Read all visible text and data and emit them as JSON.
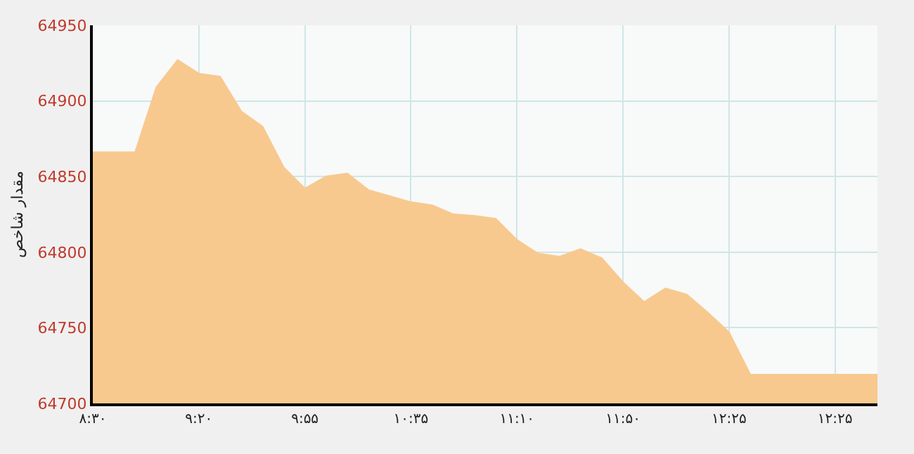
{
  "chart_data": {
    "type": "area",
    "ylabel": "مقدار شاخص",
    "categories": [
      "۸:۳۰",
      null,
      null,
      null,
      null,
      "۹:۲۰",
      null,
      null,
      null,
      null,
      "۹:۵۵",
      null,
      null,
      null,
      null,
      "۱۰:۳۵",
      null,
      null,
      null,
      null,
      "۱۱:۱۰",
      null,
      null,
      null,
      null,
      "۱۱:۵۰",
      null,
      null,
      null,
      null,
      "۱۲:۲۵",
      null,
      null,
      null,
      null,
      "۱۲:۲۵",
      null,
      null
    ],
    "series": [
      {
        "color": "#f8c98e",
        "values": [
          64866,
          64866,
          64866,
          64909,
          64927,
          64918,
          64916,
          64893,
          64883,
          64856,
          64842,
          64850,
          64852,
          64841,
          64837,
          64833,
          64831,
          64825,
          64824,
          64822,
          64808,
          64799,
          64797,
          64802,
          64796,
          64780,
          64767,
          64776,
          64772,
          64760,
          64747,
          64719,
          64719,
          64719,
          64719,
          64719,
          64719,
          64719
        ]
      }
    ],
    "ylim": [
      64700,
      64950
    ],
    "yticks": [
      64700,
      64750,
      64800,
      64850,
      64900,
      64950
    ],
    "grid": true
  }
}
